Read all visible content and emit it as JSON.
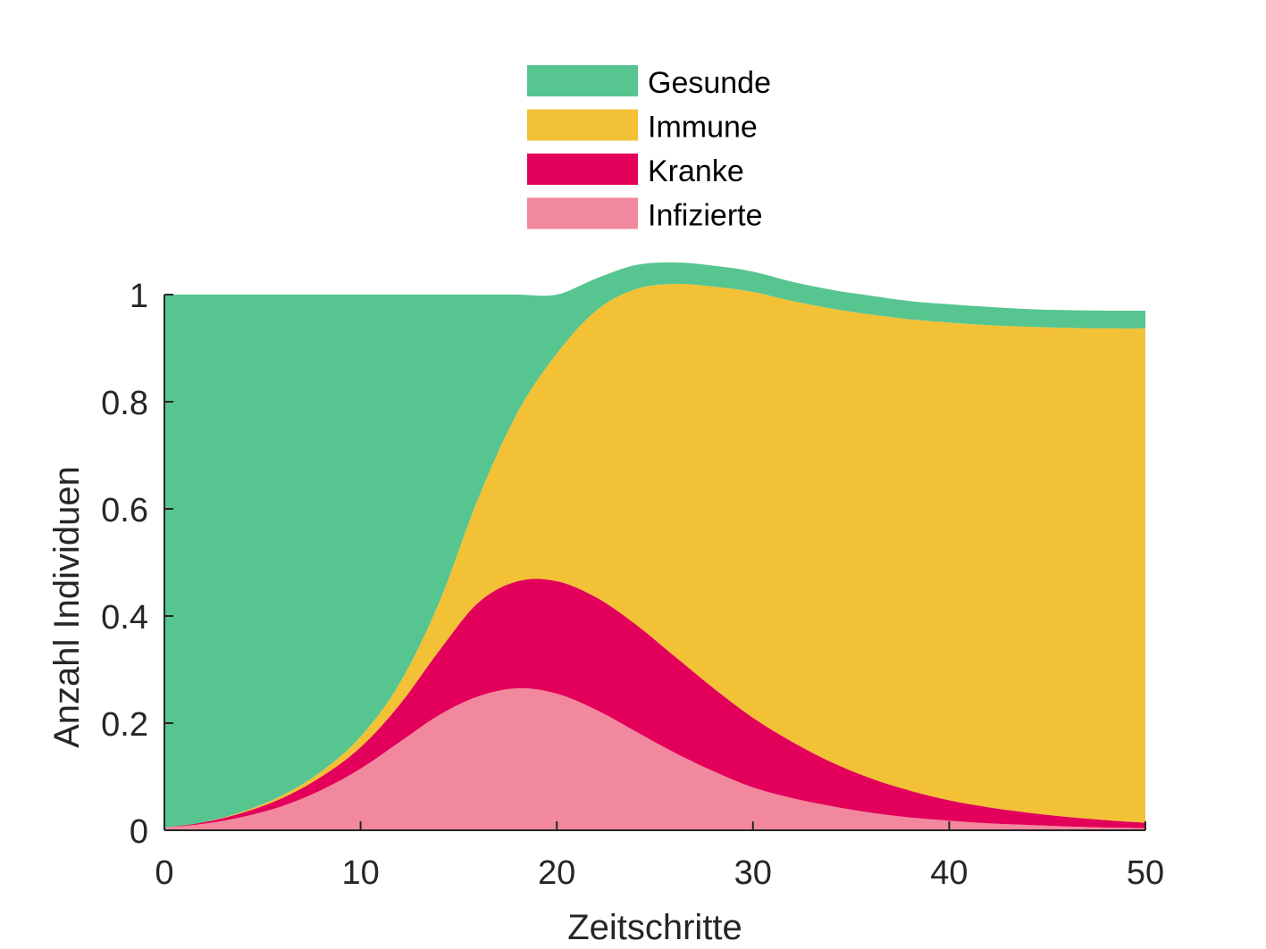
{
  "chart_data": {
    "type": "area",
    "stacked": true,
    "xlabel": "Zeitschritte",
    "ylabel": "Anzahl Individuen",
    "xlim": [
      0,
      50
    ],
    "ylim": [
      0,
      1
    ],
    "xticks": [
      0,
      10,
      20,
      30,
      40,
      50
    ],
    "xtick_labels": [
      "0",
      "10",
      "20",
      "30",
      "40",
      "50"
    ],
    "yticks": [
      0,
      0.2,
      0.4,
      0.6,
      0.8,
      1
    ],
    "ytick_labels": [
      "0",
      "0.2",
      "0.4",
      "0.6",
      "0.8",
      "1"
    ],
    "grid": false,
    "legend_position": "top-center",
    "x": [
      0,
      2,
      4,
      6,
      8,
      10,
      12,
      14,
      16,
      18,
      20,
      22,
      24,
      26,
      28,
      30,
      32,
      34,
      36,
      38,
      40,
      42,
      44,
      46,
      48,
      50
    ],
    "series": [
      {
        "name": "Infizierte",
        "color": "#F2889E",
        "values": [
          0.005,
          0.012,
          0.025,
          0.045,
          0.075,
          0.115,
          0.165,
          0.215,
          0.25,
          0.265,
          0.255,
          0.225,
          0.185,
          0.145,
          0.11,
          0.08,
          0.06,
          0.045,
          0.033,
          0.024,
          0.018,
          0.013,
          0.01,
          0.007,
          0.005,
          0.004
        ]
      },
      {
        "name": "Kranke",
        "color": "#E2005A",
        "values": [
          0.0,
          0.003,
          0.008,
          0.015,
          0.025,
          0.04,
          0.07,
          0.12,
          0.175,
          0.2,
          0.21,
          0.21,
          0.2,
          0.18,
          0.155,
          0.13,
          0.105,
          0.082,
          0.064,
          0.05,
          0.038,
          0.03,
          0.023,
          0.018,
          0.014,
          0.01
        ]
      },
      {
        "name": "Immune",
        "color": "#F2C136",
        "values": [
          0.0,
          0.0,
          0.002,
          0.005,
          0.01,
          0.02,
          0.04,
          0.09,
          0.195,
          0.315,
          0.425,
          0.535,
          0.625,
          0.695,
          0.75,
          0.795,
          0.823,
          0.847,
          0.866,
          0.88,
          0.892,
          0.9,
          0.907,
          0.913,
          0.918,
          0.923
        ]
      },
      {
        "name": "Gesunde",
        "color": "#56C590",
        "values": [
          0.995,
          0.985,
          0.965,
          0.935,
          0.89,
          0.825,
          0.725,
          0.575,
          0.38,
          0.22,
          0.11,
          0.06,
          0.045,
          0.04,
          0.039,
          0.038,
          0.036,
          0.035,
          0.035,
          0.034,
          0.034,
          0.034,
          0.033,
          0.033,
          0.033,
          0.033
        ]
      }
    ],
    "legend_order": [
      "Gesunde",
      "Immune",
      "Kranke",
      "Infizierte"
    ]
  }
}
